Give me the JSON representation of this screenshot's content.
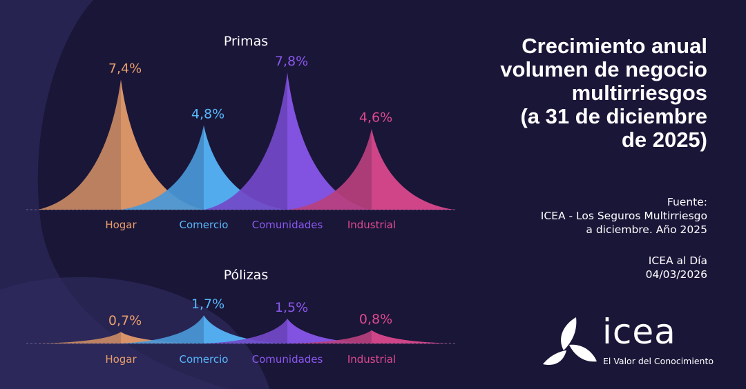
{
  "title": "Crecimiento anual volumen de negocio multirriesgos (a 31 de diciembre de 2025)",
  "title_lines": [
    "Crecimiento anual",
    "volumen de negocio",
    "multirriesgos",
    "(a 31 de diciembre",
    "de 2025)"
  ],
  "source": {
    "label": "Fuente:",
    "line1": "ICEA - Los Seguros Multirriesgo",
    "line2": "a diciembre. Año 2025"
  },
  "publication": {
    "name": "ICEA al Día",
    "date": "04/03/2026"
  },
  "logo": {
    "word": "icea",
    "tagline": "El Valor del Conocimiento"
  },
  "colors": {
    "background": "#1a1638",
    "Hogar": "#e89e6b",
    "Comercio": "#57b8fc",
    "Comunidades": "#8b58ef",
    "Industrial": "#e04a8f"
  },
  "chart_data": [
    {
      "type": "area",
      "title": "Primas",
      "categories": [
        "Hogar",
        "Comercio",
        "Comunidades",
        "Industrial"
      ],
      "values": [
        7.4,
        4.8,
        7.8,
        4.6
      ],
      "data_labels": [
        "7,4%",
        "4,8%",
        "7,8%",
        "4,6%"
      ],
      "unit": "%",
      "grid": false
    },
    {
      "type": "area",
      "title": "Pólizas",
      "categories": [
        "Hogar",
        "Comercio",
        "Comunidades",
        "Industrial"
      ],
      "values": [
        0.7,
        1.7,
        1.5,
        0.8
      ],
      "data_labels": [
        "0,7%",
        "1,7%",
        "1,5%",
        "0,8%"
      ],
      "unit": "%",
      "grid": false
    }
  ]
}
